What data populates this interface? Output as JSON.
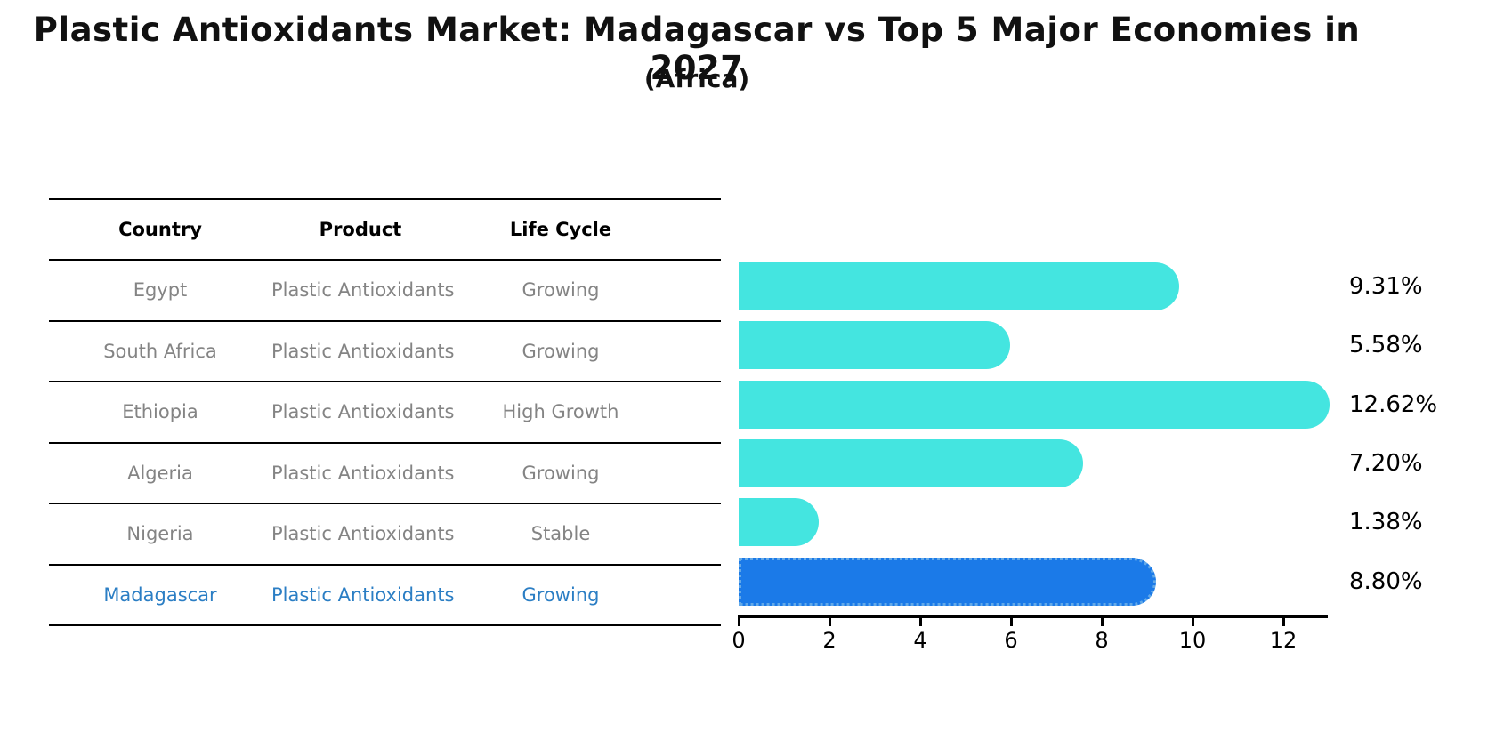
{
  "title": "Plastic Antioxidants Market: Madagascar vs Top 5 Major Economies in 2027",
  "subtitle": "(Africa)",
  "table": {
    "headers": {
      "country": "Country",
      "product": "Product",
      "life_cycle": "Life Cycle"
    },
    "rows": [
      {
        "country": "Egypt",
        "product": "Plastic Antioxidants",
        "life_cycle": "Growing"
      },
      {
        "country": "South Africa",
        "product": "Plastic Antioxidants",
        "life_cycle": "Growing"
      },
      {
        "country": "Ethiopia",
        "product": "Plastic Antioxidants",
        "life_cycle": "High Growth"
      },
      {
        "country": "Algeria",
        "product": "Plastic Antioxidants",
        "life_cycle": "Growing"
      },
      {
        "country": "Nigeria",
        "product": "Plastic Antioxidants",
        "life_cycle": "Stable"
      },
      {
        "country": "Madagascar",
        "product": "Plastic Antioxidants",
        "life_cycle": "Growing"
      }
    ],
    "highlight_row": 5
  },
  "chart_data": {
    "type": "bar",
    "orientation": "horizontal",
    "title": "Plastic Antioxidants Market: Madagascar vs Top 5 Major Economies in 2027 (Africa)",
    "categories": [
      "Egypt",
      "South Africa",
      "Ethiopia",
      "Algeria",
      "Nigeria",
      "Madagascar"
    ],
    "values": [
      9.31,
      5.58,
      12.62,
      7.2,
      1.38,
      8.8
    ],
    "value_labels": [
      "9.31%",
      "5.58%",
      "12.62%",
      "7.20%",
      "1.38%",
      "8.80%"
    ],
    "unit": "%",
    "xlabel": "",
    "ylabel": "",
    "xlim": [
      0,
      13
    ],
    "xticks": [
      "0",
      "2",
      "4",
      "6",
      "8",
      "10",
      "12"
    ],
    "grid": false,
    "legend": false,
    "bar_color": "#44E5E0",
    "highlight_color": "#1B7AE8",
    "highlight_index": 5
  },
  "colors": {
    "row_text": "#848484",
    "highlight_text": "#2B7EC4",
    "axis": "#000000"
  }
}
